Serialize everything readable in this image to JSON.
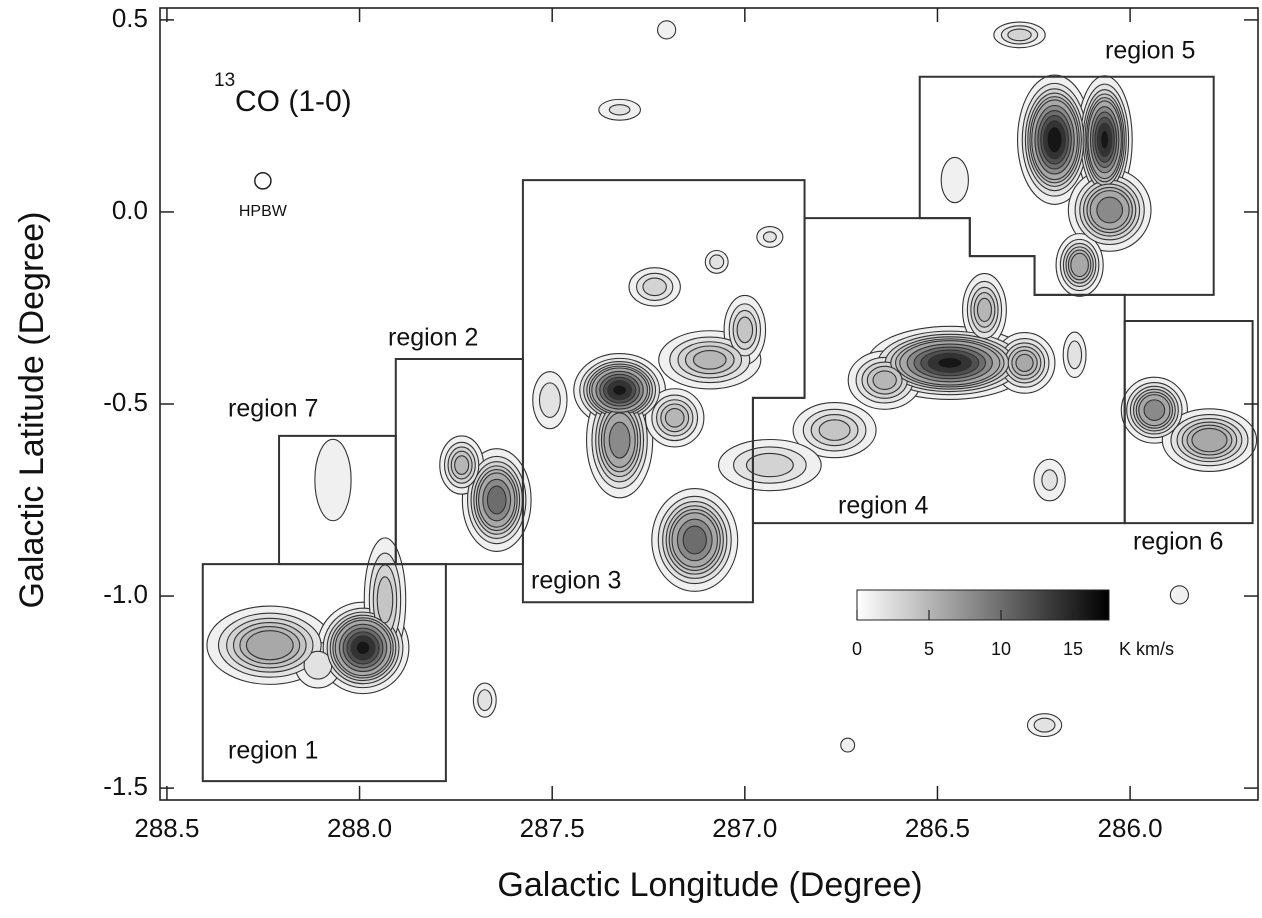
{
  "chart_data": {
    "type": "contour",
    "title_sup": "13",
    "title": "CO (1-0)",
    "x_label": "Galactic Longitude (Degree)",
    "y_label": "Galactic Latitude (Degree)",
    "xlim": [
      288.518,
      285.668
    ],
    "ylim": [
      -1.531,
      0.531
    ],
    "xticks": [
      288.5,
      {
        "value": 288,
        "label": "288.0"
      },
      287.5,
      {
        "value": 287,
        "label": "287.0"
      },
      286.5,
      {
        "value": 286,
        "label": "286.0"
      }
    ],
    "yticks": [
      0.5,
      {
        "value": 0,
        "label": "0.0"
      },
      -0.5,
      {
        "value": -1,
        "label": "-1.0"
      },
      -1.5
    ],
    "contour_levels": [
      1,
      2,
      3,
      4,
      5,
      6,
      8,
      10,
      12,
      14,
      16
    ],
    "colorbar": {
      "lim": [
        0,
        17.5
      ],
      "ticks": [
        0,
        5,
        10,
        15
      ],
      "unit": "K km/s"
    },
    "beam": {
      "label": "HPBW",
      "l": 288.251,
      "b": 0.081,
      "diameter": 0.042
    },
    "regions": [
      {
        "name": "region 1",
        "l": [
          288.407,
          287.776,
          287.776,
          288.407
        ],
        "b": [
          -0.917,
          -0.917,
          -1.482,
          -1.482
        ]
      },
      {
        "name": "region 2",
        "l": [
          287.906,
          287.576,
          287.576,
          287.906
        ],
        "b": [
          -0.383,
          -0.383,
          -0.917,
          -0.917
        ]
      },
      {
        "name": "region 3",
        "l": [
          287.576,
          286.845,
          286.845,
          286.979,
          286.979,
          287.576
        ],
        "b": [
          0.083,
          0.083,
          -0.484,
          -0.484,
          -1.016,
          -1.016
        ]
      },
      {
        "name": "region 4",
        "l": [
          286.845,
          286.416,
          286.416,
          286.248,
          286.248,
          286.014,
          286.014,
          286.979,
          286.979,
          286.845
        ],
        "b": [
          -0.016,
          -0.016,
          -0.115,
          -0.115,
          -0.216,
          -0.216,
          -0.81,
          -0.81,
          -0.484,
          -0.484
        ]
      },
      {
        "name": "region 5",
        "l": [
          286.546,
          285.783,
          285.783,
          286.248,
          286.248,
          286.416,
          286.416,
          286.546
        ],
        "b": [
          0.352,
          0.352,
          -0.216,
          -0.216,
          -0.115,
          -0.115,
          -0.016,
          -0.016
        ]
      },
      {
        "name": "region 6",
        "l": [
          286.014,
          285.682,
          285.682,
          286.014
        ],
        "b": [
          -0.284,
          -0.284,
          -0.81,
          -0.81
        ]
      },
      {
        "name": "region 7",
        "l": [
          288.209,
          287.906,
          287.906,
          288.209
        ],
        "b": [
          -0.583,
          -0.583,
          -0.917,
          -0.917
        ]
      }
    ],
    "clumps": [
      {
        "l": 288.233,
        "b": -1.128,
        "peak": 8,
        "sigma_l": 0.08,
        "sigma_b": 0.05
      },
      {
        "l": 287.991,
        "b": -1.135,
        "peak": 17,
        "sigma_l": 0.05,
        "sigma_b": 0.05
      },
      {
        "l": 287.934,
        "b": -1.01,
        "peak": 5,
        "sigma_l": 0.03,
        "sigma_b": 0.09
      },
      {
        "l": 288.108,
        "b": -1.18,
        "peak": 3,
        "sigma_l": 0.04,
        "sigma_b": 0.04
      },
      {
        "l": 288.069,
        "b": -0.698,
        "peak": 2,
        "sigma_l": 0.04,
        "sigma_b": 0.09
      },
      {
        "l": 287.644,
        "b": -0.75,
        "peak": 12,
        "sigma_l": 0.04,
        "sigma_b": 0.06
      },
      {
        "l": 287.735,
        "b": -0.659,
        "peak": 6,
        "sigma_l": 0.03,
        "sigma_b": 0.04
      },
      {
        "l": 287.325,
        "b": -0.464,
        "peak": 17,
        "sigma_l": 0.05,
        "sigma_b": 0.04
      },
      {
        "l": 287.325,
        "b": -0.594,
        "peak": 10,
        "sigma_l": 0.04,
        "sigma_b": 0.07
      },
      {
        "l": 287.13,
        "b": -0.854,
        "peak": 12,
        "sigma_l": 0.05,
        "sigma_b": 0.06
      },
      {
        "l": 287.182,
        "b": -0.536,
        "peak": 6,
        "sigma_l": 0.04,
        "sigma_b": 0.04
      },
      {
        "l": 287.091,
        "b": -0.385,
        "peak": 6,
        "sigma_l": 0.07,
        "sigma_b": 0.04
      },
      {
        "l": 287.0,
        "b": -0.307,
        "peak": 5,
        "sigma_l": 0.03,
        "sigma_b": 0.05
      },
      {
        "l": 287.234,
        "b": -0.195,
        "peak": 4,
        "sigma_l": 0.04,
        "sigma_b": 0.03
      },
      {
        "l": 287.073,
        "b": -0.13,
        "peak": 3,
        "sigma_l": 0.02,
        "sigma_b": 0.02
      },
      {
        "l": 286.935,
        "b": -0.065,
        "peak": 2.5,
        "sigma_l": 0.025,
        "sigma_b": 0.02
      },
      {
        "l": 287.325,
        "b": 0.266,
        "peak": 2.5,
        "sigma_l": 0.04,
        "sigma_b": 0.02
      },
      {
        "l": 286.468,
        "b": -0.393,
        "peak": 17,
        "sigma_l": 0.09,
        "sigma_b": 0.04
      },
      {
        "l": 286.378,
        "b": -0.255,
        "peak": 6,
        "sigma_l": 0.03,
        "sigma_b": 0.05
      },
      {
        "l": 286.274,
        "b": -0.393,
        "peak": 7,
        "sigma_l": 0.04,
        "sigma_b": 0.04
      },
      {
        "l": 286.637,
        "b": -0.438,
        "peak": 6,
        "sigma_l": 0.05,
        "sigma_b": 0.04
      },
      {
        "l": 286.767,
        "b": -0.568,
        "peak": 5,
        "sigma_l": 0.06,
        "sigma_b": 0.04
      },
      {
        "l": 286.935,
        "b": -0.659,
        "peak": 4,
        "sigma_l": 0.08,
        "sigma_b": 0.04
      },
      {
        "l": 286.144,
        "b": -0.372,
        "peak": 3,
        "sigma_l": 0.02,
        "sigma_b": 0.04
      },
      {
        "l": 286.196,
        "b": 0.188,
        "peak": 18,
        "sigma_l": 0.04,
        "sigma_b": 0.07
      },
      {
        "l": 286.066,
        "b": 0.188,
        "peak": 17,
        "sigma_l": 0.03,
        "sigma_b": 0.07
      },
      {
        "l": 286.053,
        "b": 0.005,
        "peak": 10,
        "sigma_l": 0.05,
        "sigma_b": 0.05
      },
      {
        "l": 286.131,
        "b": -0.138,
        "peak": 8,
        "sigma_l": 0.03,
        "sigma_b": 0.04
      },
      {
        "l": 286.287,
        "b": 0.461,
        "peak": 4,
        "sigma_l": 0.04,
        "sigma_b": 0.02
      },
      {
        "l": 286.455,
        "b": 0.083,
        "peak": 2,
        "sigma_l": 0.03,
        "sigma_b": 0.05
      },
      {
        "l": 285.937,
        "b": -0.516,
        "peak": 10,
        "sigma_l": 0.04,
        "sigma_b": 0.04
      },
      {
        "l": 285.794,
        "b": -0.594,
        "peak": 8,
        "sigma_l": 0.06,
        "sigma_b": 0.04
      },
      {
        "l": 286.222,
        "b": -1.336,
        "peak": 3,
        "sigma_l": 0.03,
        "sigma_b": 0.02
      },
      {
        "l": 287.675,
        "b": -1.271,
        "peak": 3,
        "sigma_l": 0.02,
        "sigma_b": 0.03
      },
      {
        "l": 286.209,
        "b": -0.698,
        "peak": 2.5,
        "sigma_l": 0.03,
        "sigma_b": 0.04
      },
      {
        "l": 287.203,
        "b": 0.474,
        "peak": 2,
        "sigma_l": 0.02,
        "sigma_b": 0.02
      },
      {
        "l": 285.872,
        "b": -0.997,
        "peak": 2,
        "sigma_l": 0.02,
        "sigma_b": 0.02
      },
      {
        "l": 286.733,
        "b": -1.388,
        "peak": 1.5,
        "sigma_l": 0.02,
        "sigma_b": 0.02
      },
      {
        "l": 287.506,
        "b": -0.49,
        "peak": 3,
        "sigma_l": 0.03,
        "sigma_b": 0.05
      }
    ]
  }
}
